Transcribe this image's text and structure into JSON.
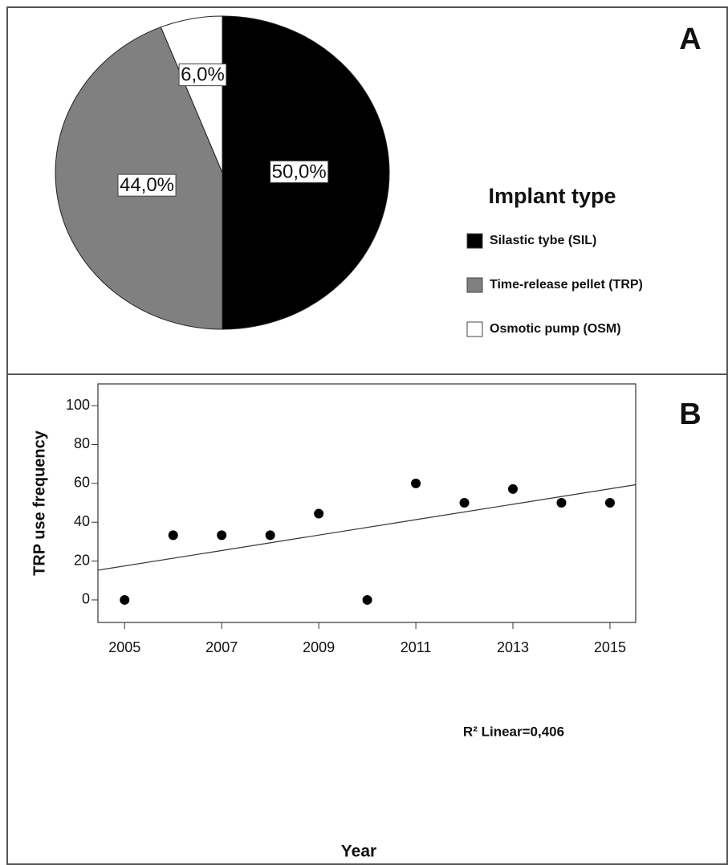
{
  "chart_data": [
    {
      "type": "pie",
      "panel": "A",
      "categories": [
        "Silastic tybe (SIL)",
        "Time-release pellet (TRP)",
        "Osmotic pump (OSM)"
      ],
      "values": [
        50,
        44,
        6
      ],
      "value_labels": [
        "50,0%",
        "44,0%",
        "6,0%"
      ],
      "colors": [
        "#000000",
        "#808080",
        "#ffffff"
      ],
      "legend_title": "Implant type",
      "legend": "right"
    },
    {
      "type": "scatter",
      "panel": "B",
      "x": [
        2005,
        2006,
        2007,
        2008,
        2009,
        2010,
        2011,
        2012,
        2013,
        2014,
        2015
      ],
      "y": [
        0,
        33.3,
        33.3,
        33.3,
        44.4,
        0,
        60,
        50,
        57.1,
        50,
        50
      ],
      "color": "#000000",
      "xlim": [
        2004.45,
        2015.53
      ],
      "ylim": [
        -11.6,
        111.2
      ],
      "xticks": [
        2005,
        2007,
        2009,
        2011,
        2013,
        2015
      ],
      "yticks": [
        0,
        20,
        40,
        60,
        80,
        100
      ],
      "xlabel": "Year",
      "ylabel": "TRP use frequency",
      "trend_line": {
        "x": [
          2004.45,
          2015.53
        ],
        "y": [
          15.3,
          59.3
        ]
      },
      "annotation": "R² Linear=0,406"
    }
  ]
}
